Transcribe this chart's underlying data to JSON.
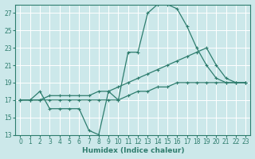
{
  "xlabel": "Humidex (Indice chaleur)",
  "background_color": "#cce8ea",
  "grid_color": "#b0d4d8",
  "line_color": "#2e7d6e",
  "ylim": [
    13,
    28
  ],
  "xlim": [
    -0.5,
    23.5
  ],
  "yticks": [
    13,
    15,
    17,
    19,
    21,
    23,
    25,
    27
  ],
  "xticks": [
    0,
    1,
    2,
    3,
    4,
    5,
    6,
    7,
    8,
    9,
    10,
    11,
    12,
    13,
    14,
    15,
    16,
    17,
    18,
    19,
    20,
    21,
    22,
    23
  ],
  "line1_x": [
    0,
    1,
    2,
    3,
    4,
    5,
    6,
    7,
    8,
    9,
    10,
    11,
    12,
    13,
    14,
    15,
    16,
    17,
    18,
    19,
    20,
    21,
    22,
    23
  ],
  "line1_y": [
    17.0,
    17.0,
    18.0,
    16.0,
    16.0,
    16.0,
    16.0,
    13.5,
    13.0,
    18.0,
    17.0,
    22.5,
    22.5,
    27.0,
    28.0,
    28.0,
    27.5,
    25.5,
    23.0,
    21.0,
    19.5,
    19.0,
    19.0,
    19.0
  ],
  "line2_x": [
    0,
    1,
    2,
    3,
    4,
    5,
    6,
    7,
    8,
    9,
    10,
    11,
    12,
    13,
    14,
    15,
    16,
    17,
    18,
    19,
    20,
    21,
    22,
    23
  ],
  "line2_y": [
    17.0,
    17.0,
    17.0,
    17.0,
    17.0,
    17.0,
    17.0,
    17.0,
    17.0,
    17.0,
    17.0,
    17.5,
    18.0,
    18.0,
    18.5,
    18.5,
    19.0,
    19.0,
    19.0,
    19.0,
    19.0,
    19.0,
    19.0,
    19.0
  ],
  "line3_x": [
    0,
    1,
    2,
    3,
    4,
    5,
    6,
    7,
    8,
    9,
    10,
    11,
    12,
    13,
    14,
    15,
    16,
    17,
    18,
    19,
    20,
    21,
    22,
    23
  ],
  "line3_y": [
    17.0,
    17.0,
    17.0,
    17.5,
    17.5,
    17.5,
    17.5,
    17.5,
    18.0,
    18.0,
    18.5,
    19.0,
    19.5,
    20.0,
    20.5,
    21.0,
    21.5,
    22.0,
    22.5,
    23.0,
    21.0,
    19.5,
    19.0,
    19.0
  ]
}
